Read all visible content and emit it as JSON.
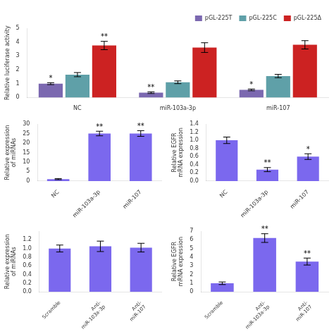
{
  "chart_data": [
    {
      "type": "bar",
      "categories": [
        "NC",
        "miR-103a-3p",
        "miR-107"
      ],
      "series": [
        {
          "name": "pGL-225T",
          "color": "#7B68B0",
          "values": [
            1.0,
            0.35,
            0.55
          ],
          "errors": [
            0.07,
            0.06,
            0.06
          ]
        },
        {
          "name": "pGL-225C",
          "color": "#5FA0A8",
          "values": [
            1.65,
            1.1,
            1.55
          ],
          "errors": [
            0.15,
            0.1,
            0.12
          ]
        },
        {
          "name": "pGL-225Δ",
          "color": "#CC2222",
          "values": [
            3.75,
            3.6,
            3.8
          ],
          "errors": [
            0.3,
            0.35,
            0.3
          ]
        }
      ],
      "ylabel": "Relative luciferase activity",
      "ylim": [
        0,
        5
      ],
      "yticks": [
        0,
        1,
        2,
        3,
        4,
        5
      ],
      "grid": false,
      "legend": "upper right",
      "annotations": [
        {
          "text": "*",
          "category": "NC",
          "series": "pGL-225T"
        },
        {
          "text": "**",
          "category": "NC",
          "series": "pGL-225Δ"
        },
        {
          "text": "**",
          "category": "miR-103a-3p",
          "series": "pGL-225T"
        },
        {
          "text": "*",
          "category": "miR-107",
          "series": "pGL-225T"
        }
      ]
    },
    {
      "type": "bar",
      "categories": [
        "NC",
        "miR-103a-3p",
        "miR-107"
      ],
      "values": [
        1.0,
        25.0,
        25.0
      ],
      "errors": [
        0.3,
        1.2,
        1.5
      ],
      "color": "#7B68EE",
      "ylabel": "Relative expression\nof miRNAs",
      "ylim": [
        0,
        30
      ],
      "yticks": [
        0,
        5,
        10,
        15,
        20,
        25,
        30
      ],
      "grid": false,
      "annotations": [
        {
          "text": "**",
          "category": "miR-103a-3p"
        },
        {
          "text": "**",
          "category": "miR-107"
        }
      ]
    },
    {
      "type": "bar",
      "categories": [
        "NC",
        "miR-103a-3p",
        "miR-107"
      ],
      "values": [
        1.0,
        0.28,
        0.6
      ],
      "errors": [
        0.08,
        0.05,
        0.07
      ],
      "color": "#7B68EE",
      "ylabel": "Relative EGFR\nmRNA expression",
      "ylim": [
        0,
        1.4
      ],
      "yticks": [
        {
          "value": 0,
          "label": "0.0"
        },
        0.2,
        0.4,
        0.6,
        0.8,
        {
          "value": 1,
          "label": "1.0"
        },
        1.2,
        1.4
      ],
      "grid": false,
      "annotations": [
        {
          "text": "**",
          "category": "miR-103a-3p"
        },
        {
          "text": "*",
          "category": "miR-107"
        }
      ]
    },
    {
      "type": "bar",
      "categories": [
        "Scramble",
        "Anti-\nmiR-103a-3p",
        "Anti-\nmiR-107"
      ],
      "values": [
        1.0,
        1.05,
        1.02
      ],
      "errors": [
        0.08,
        0.12,
        0.1
      ],
      "color": "#7B68EE",
      "ylabel": "Relative expression\nof miRNAs",
      "ylim": [
        0,
        1.4
      ],
      "yticks": [
        {
          "value": 0,
          "label": "0.0"
        },
        0.2,
        0.4,
        0.6,
        0.8,
        {
          "value": 1,
          "label": "1.0"
        },
        1.2
      ],
      "grid": false
    },
    {
      "type": "bar",
      "categories": [
        "Scramble",
        "Anti-\nmiR-103a-3p",
        "Anti-\nmiR-107"
      ],
      "values": [
        1.0,
        6.2,
        3.5
      ],
      "errors": [
        0.15,
        0.5,
        0.4
      ],
      "color": "#7B68EE",
      "ylabel": "Relative EGFR\nmRNA expression",
      "ylim": [
        0,
        7
      ],
      "yticks": [
        0,
        1,
        2,
        3,
        4,
        5,
        6,
        7
      ],
      "grid": false,
      "annotations": [
        {
          "text": "**",
          "category": "Anti-\nmiR-103a-3p"
        },
        {
          "text": "**",
          "category": "Anti-\nmiR-107"
        }
      ]
    }
  ]
}
